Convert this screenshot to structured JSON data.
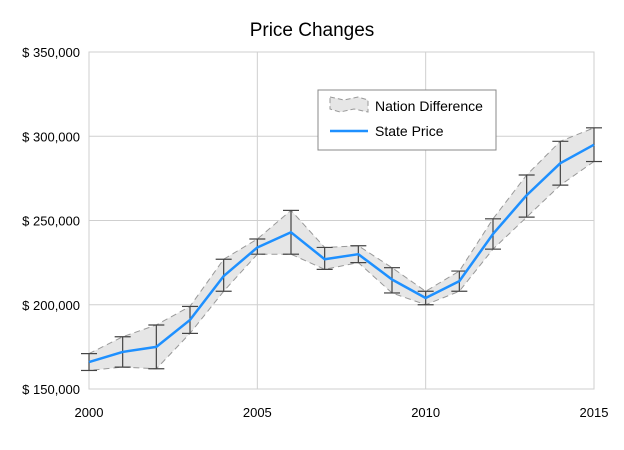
{
  "chart_data": {
    "type": "line",
    "title": "Price Changes",
    "x": [
      2000,
      2001,
      2002,
      2003,
      2004,
      2005,
      2006,
      2007,
      2008,
      2009,
      2010,
      2011,
      2012,
      2013,
      2014,
      2015
    ],
    "x_ticks": [
      2000,
      2005,
      2010,
      2015
    ],
    "y_ticks": [
      150000,
      200000,
      250000,
      300000,
      350000
    ],
    "y_tick_labels": [
      "$ 150,000",
      "$ 200,000",
      "$ 250,000",
      "$ 300,000",
      "$ 350,000"
    ],
    "xlim": [
      2000,
      2015
    ],
    "ylim": [
      150000,
      350000
    ],
    "grid": true,
    "legend_position": "top-right",
    "series": [
      {
        "name": "State Price",
        "color": "#1e90ff",
        "values": [
          166000,
          172000,
          175000,
          191000,
          217000,
          234000,
          243000,
          227000,
          230000,
          215000,
          204000,
          214000,
          242000,
          265000,
          284000,
          295000
        ]
      }
    ],
    "band": {
      "name": "Nation Difference",
      "color": "#e6e6e6",
      "stroke": "#999999",
      "upper": [
        171000,
        181000,
        188000,
        199000,
        227000,
        239000,
        256000,
        234000,
        235000,
        222000,
        208000,
        220000,
        251000,
        277000,
        297000,
        305000
      ],
      "lower": [
        161000,
        163000,
        162000,
        183000,
        208000,
        230000,
        230000,
        221000,
        225000,
        207000,
        200000,
        208000,
        233000,
        252000,
        271000,
        285000
      ]
    }
  }
}
